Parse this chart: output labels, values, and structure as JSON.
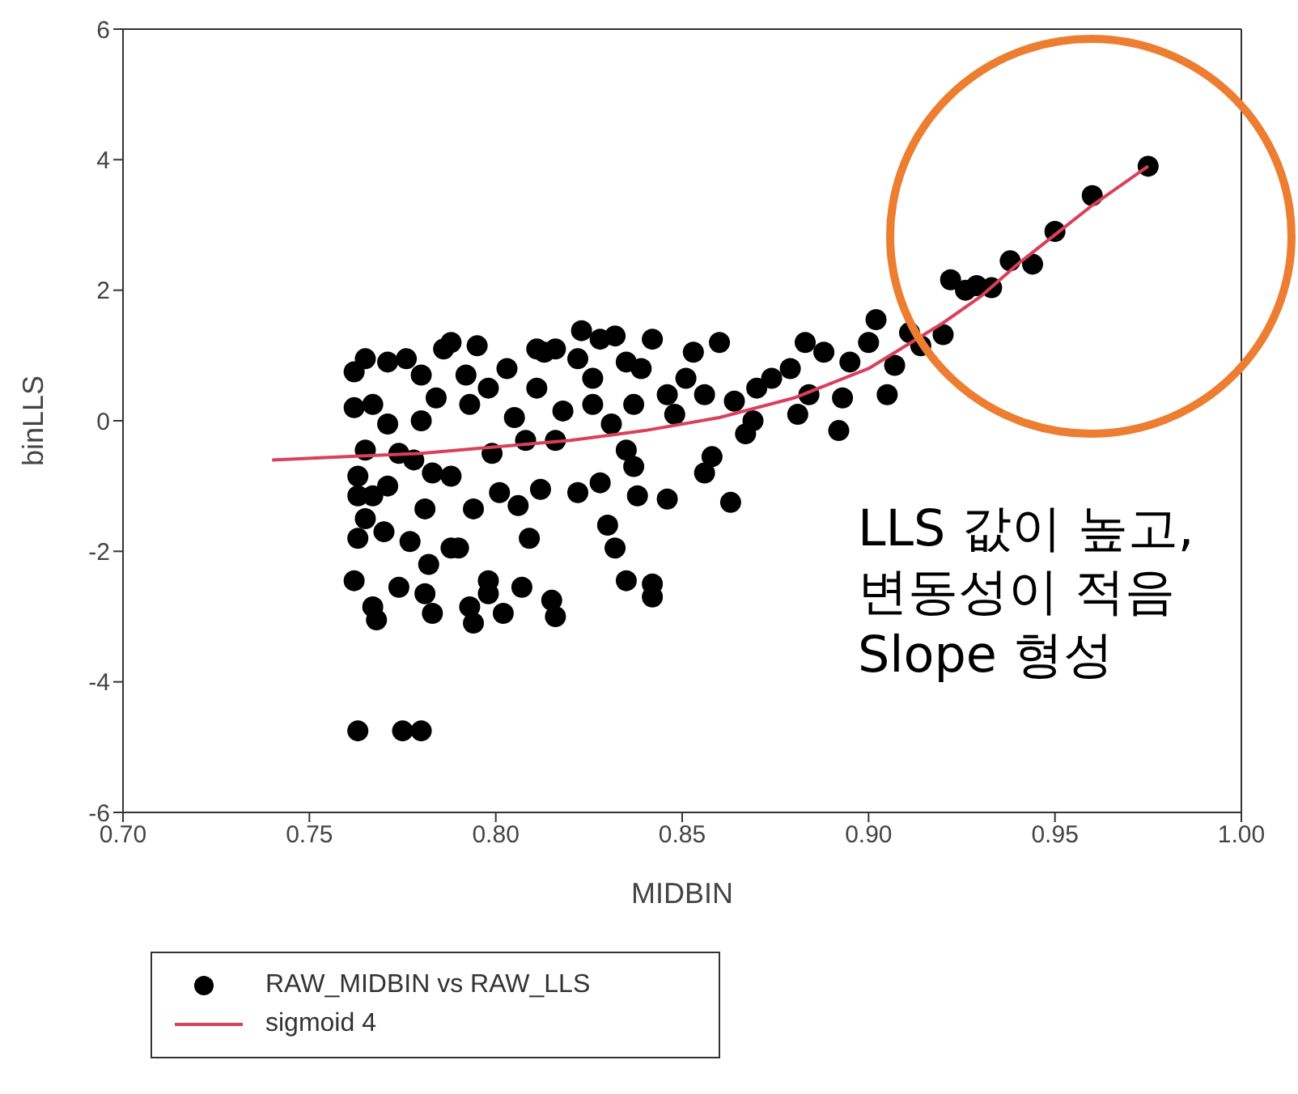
{
  "chart_data": {
    "type": "scatter",
    "xlabel": "MIDBIN",
    "ylabel": "binLLS",
    "xlim": [
      0.7,
      1.0
    ],
    "xticks": [
      {
        "value": 0.7,
        "label": "0.70"
      },
      {
        "value": 0.75,
        "label": "0.75"
      },
      {
        "value": 0.8,
        "label": "0.80"
      },
      {
        "value": 0.85,
        "label": "0.85"
      },
      {
        "value": 0.9,
        "label": "0.90"
      },
      {
        "value": 0.95,
        "label": "0.95"
      },
      {
        "value": 1.0,
        "label": "1.00"
      }
    ],
    "ylim": [
      -6,
      6
    ],
    "yticks": [
      -6,
      -4,
      -2,
      0,
      2,
      4,
      6
    ],
    "legend": "bottom left",
    "marker": "circle",
    "annotations": [
      "LLS 값이 높고,\n변동성이 적음\nSlope 형성"
    ],
    "series": [
      {
        "name": "RAW_MIDBIN vs RAW_LLS",
        "color": "#000000",
        "x": [
          0.975,
          0.96,
          0.95,
          0.944,
          0.938,
          0.933,
          0.929,
          0.926,
          0.922,
          0.92,
          0.914,
          0.911,
          0.907,
          0.905,
          0.902,
          0.9,
          0.895,
          0.892,
          0.893,
          0.888,
          0.883,
          0.884,
          0.881,
          0.879,
          0.874,
          0.87,
          0.867,
          0.869,
          0.864,
          0.863,
          0.858,
          0.856,
          0.86,
          0.853,
          0.848,
          0.846,
          0.842,
          0.846,
          0.838,
          0.837,
          0.842,
          0.842,
          0.835,
          0.832,
          0.83,
          0.828,
          0.822,
          0.823,
          0.828,
          0.832,
          0.835,
          0.826,
          0.816,
          0.813,
          0.811,
          0.816,
          0.815,
          0.809,
          0.807,
          0.802,
          0.798,
          0.798,
          0.794,
          0.793,
          0.79,
          0.788,
          0.783,
          0.781,
          0.782,
          0.777,
          0.774,
          0.768,
          0.767,
          0.762,
          0.763,
          0.77,
          0.78,
          0.775,
          0.763,
          0.781,
          0.794,
          0.801,
          0.806,
          0.812,
          0.788,
          0.783,
          0.763,
          0.763,
          0.767,
          0.765,
          0.765,
          0.762,
          0.762,
          0.765,
          0.771,
          0.776,
          0.767,
          0.771,
          0.774,
          0.78,
          0.788,
          0.786,
          0.795,
          0.792,
          0.798,
          0.793,
          0.803,
          0.805,
          0.808,
          0.799,
          0.811,
          0.818,
          0.822,
          0.816,
          0.826,
          0.831,
          0.837,
          0.839,
          0.851,
          0.856,
          0.835,
          0.78,
          0.784,
          0.778,
          0.771
        ],
        "values": [
          3.9,
          3.45,
          2.9,
          2.4,
          2.45,
          2.04,
          2.07,
          2.0,
          2.16,
          1.32,
          1.15,
          1.35,
          0.85,
          0.4,
          1.55,
          1.2,
          0.9,
          -0.15,
          0.35,
          1.05,
          1.2,
          0.4,
          0.1,
          0.8,
          0.65,
          0.5,
          -0.2,
          0.0,
          0.3,
          -1.25,
          -0.55,
          -0.8,
          1.2,
          1.05,
          0.1,
          0.4,
          1.25,
          -1.2,
          -1.15,
          -0.7,
          -2.5,
          -2.7,
          -2.45,
          -1.95,
          -1.6,
          -0.95,
          -1.1,
          1.38,
          1.25,
          1.3,
          0.9,
          0.65,
          1.1,
          1.05,
          1.1,
          -3.0,
          -2.75,
          -1.8,
          -2.55,
          -2.95,
          -2.45,
          -2.65,
          -3.1,
          -2.85,
          -1.95,
          -1.95,
          -2.95,
          -2.65,
          -2.2,
          -1.85,
          -2.55,
          -3.05,
          -2.85,
          -2.45,
          -1.8,
          -1.7,
          -4.75,
          -4.75,
          -4.75,
          -1.35,
          -1.35,
          -1.1,
          -1.3,
          -1.05,
          -0.85,
          -0.8,
          -0.85,
          -1.15,
          -1.15,
          -1.5,
          -0.45,
          0.2,
          0.75,
          0.95,
          0.9,
          0.95,
          0.25,
          -0.05,
          -0.5,
          0.0,
          1.2,
          1.1,
          1.15,
          0.7,
          0.5,
          0.25,
          0.8,
          0.05,
          -0.3,
          -0.5,
          0.5,
          0.15,
          0.95,
          -0.3,
          0.25,
          -0.05,
          0.25,
          0.8,
          0.65,
          0.4,
          -0.45,
          0.7,
          0.35,
          -0.6,
          -1.0
        ]
      },
      {
        "name": "sigmoid 4",
        "type": "line",
        "color": "#d9405a",
        "marker": "none",
        "x": [
          0.74,
          0.76,
          0.78,
          0.8,
          0.82,
          0.84,
          0.86,
          0.88,
          0.9,
          0.92,
          0.93,
          0.94,
          0.95,
          0.96,
          0.975
        ],
        "values": [
          -0.6,
          -0.55,
          -0.5,
          -0.4,
          -0.3,
          -0.15,
          0.05,
          0.35,
          0.8,
          1.5,
          1.9,
          2.4,
          2.85,
          3.3,
          3.9
        ]
      }
    ]
  }
}
